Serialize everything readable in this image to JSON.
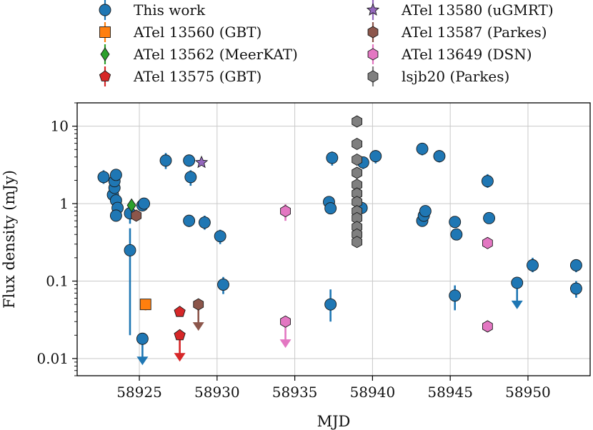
{
  "chart_data": {
    "type": "scatter",
    "xlabel": "MJD",
    "ylabel": "Flux density (mJy)",
    "xlim": [
      58921,
      58954
    ],
    "ylim": [
      0.006,
      20
    ],
    "yscale": "log",
    "grid": true,
    "legend_position": "top",
    "x_ticks": [
      58925,
      58930,
      58935,
      58940,
      58945,
      58950
    ],
    "x_tick_labels": [
      "58925",
      "58930",
      "58935",
      "58940",
      "58945",
      "58950"
    ],
    "y_ticks": [
      0.01,
      0.1,
      1,
      10
    ],
    "y_tick_labels": [
      "0.01",
      "0.1",
      "1",
      "10"
    ],
    "series": [
      {
        "name": "This work",
        "color": "#1f77b4",
        "marker": "circle",
        "points": [
          {
            "x": 58922.7,
            "y": 2.2,
            "lo": 1.8,
            "hi": 2.7
          },
          {
            "x": 58923.3,
            "y": 1.3,
            "lo": 1.1,
            "hi": 1.5
          },
          {
            "x": 58923.4,
            "y": 1.6,
            "lo": 1.4,
            "hi": 1.8
          },
          {
            "x": 58923.4,
            "y": 1.95,
            "lo": 1.7,
            "hi": 2.2
          },
          {
            "x": 58923.5,
            "y": 2.35,
            "lo": 2.0,
            "hi": 2.7
          },
          {
            "x": 58923.5,
            "y": 1.1,
            "lo": 0.95,
            "hi": 1.25
          },
          {
            "x": 58923.6,
            "y": 0.88,
            "lo": 0.75,
            "hi": 1.0
          },
          {
            "x": 58923.5,
            "y": 0.7,
            "lo": 0.6,
            "hi": 0.8
          },
          {
            "x": 58924.4,
            "y": 0.75,
            "lo": 0.55,
            "hi": 0.9
          },
          {
            "x": 58924.4,
            "y": 0.25,
            "lo": 0.02,
            "hi": 0.48
          },
          {
            "x": 58925.2,
            "y": 0.95,
            "lo": 0.8,
            "hi": 1.1
          },
          {
            "x": 58925.3,
            "y": 1.0,
            "lo": 0.85,
            "hi": 1.15
          },
          {
            "x": 58925.2,
            "y": 0.018,
            "upper_limit": true
          },
          {
            "x": 58926.7,
            "y": 3.6,
            "lo": 2.8,
            "hi": 4.5
          },
          {
            "x": 58928.2,
            "y": 3.6,
            "lo": 3.0,
            "hi": 4.3
          },
          {
            "x": 58928.3,
            "y": 2.2,
            "lo": 1.7,
            "hi": 2.7
          },
          {
            "x": 58928.2,
            "y": 0.6,
            "lo": 0.5,
            "hi": 0.7
          },
          {
            "x": 58929.2,
            "y": 0.57,
            "lo": 0.46,
            "hi": 0.7
          },
          {
            "x": 58930.2,
            "y": 0.38,
            "lo": 0.3,
            "hi": 0.46
          },
          {
            "x": 58930.4,
            "y": 0.09,
            "lo": 0.068,
            "hi": 0.113
          },
          {
            "x": 58937.2,
            "y": 1.05,
            "lo": 0.92,
            "hi": 1.2
          },
          {
            "x": 58937.3,
            "y": 0.87,
            "lo": 0.76,
            "hi": 1.0
          },
          {
            "x": 58937.4,
            "y": 3.9,
            "lo": 3.1,
            "hi": 4.7
          },
          {
            "x": 58937.3,
            "y": 0.05,
            "lo": 0.03,
            "hi": 0.078
          },
          {
            "x": 58939.4,
            "y": 3.4,
            "lo": 2.8,
            "hi": 4.0
          },
          {
            "x": 58939.3,
            "y": 0.88,
            "lo": 0.75,
            "hi": 1.0
          },
          {
            "x": 58940.2,
            "y": 4.1,
            "lo": 3.3,
            "hi": 4.9
          },
          {
            "x": 58943.2,
            "y": 5.1,
            "lo": 4.2,
            "hi": 6.1
          },
          {
            "x": 58943.2,
            "y": 0.6,
            "lo": 0.52,
            "hi": 0.68
          },
          {
            "x": 58943.3,
            "y": 0.7,
            "lo": 0.6,
            "hi": 0.8
          },
          {
            "x": 58943.4,
            "y": 0.8,
            "lo": 0.7,
            "hi": 0.9
          },
          {
            "x": 58944.3,
            "y": 4.1,
            "lo": 3.4,
            "hi": 4.9
          },
          {
            "x": 58945.3,
            "y": 0.58,
            "lo": 0.5,
            "hi": 0.66
          },
          {
            "x": 58945.4,
            "y": 0.4,
            "lo": 0.34,
            "hi": 0.46
          },
          {
            "x": 58945.3,
            "y": 0.065,
            "lo": 0.042,
            "hi": 0.088
          },
          {
            "x": 58947.4,
            "y": 1.95,
            "lo": 1.6,
            "hi": 2.4
          },
          {
            "x": 58947.5,
            "y": 0.65,
            "lo": 0.56,
            "hi": 0.74
          },
          {
            "x": 58949.3,
            "y": 0.095,
            "upper_limit": true
          },
          {
            "x": 58950.3,
            "y": 0.16,
            "lo": 0.13,
            "hi": 0.2
          },
          {
            "x": 58953.1,
            "y": 0.16,
            "lo": 0.13,
            "hi": 0.19
          },
          {
            "x": 58953.1,
            "y": 0.08,
            "lo": 0.061,
            "hi": 0.1
          }
        ]
      },
      {
        "name": "ATel 13560 (GBT)",
        "color": "#ff7f0e",
        "marker": "square",
        "points": [
          {
            "x": 58925.4,
            "y": 0.05,
            "lo": 0.042,
            "hi": 0.058
          }
        ]
      },
      {
        "name": "ATel 13562 (MeerKAT)",
        "color": "#2ca02c",
        "marker": "diamond",
        "points": [
          {
            "x": 58924.5,
            "y": 0.95,
            "lo": 0.88,
            "hi": 1.03
          }
        ]
      },
      {
        "name": "ATel 13575 (GBT)",
        "color": "#d62728",
        "marker": "pentagon",
        "points": [
          {
            "x": 58927.6,
            "y": 0.04,
            "lo": 0.035,
            "hi": 0.046
          },
          {
            "x": 58927.6,
            "y": 0.02,
            "upper_limit": true
          }
        ]
      },
      {
        "name": "ATel 13580 (uGMRT)",
        "color": "#9467bd",
        "marker": "star",
        "points": [
          {
            "x": 58929.0,
            "y": 3.4,
            "lo": 3.1,
            "hi": 3.7
          }
        ]
      },
      {
        "name": "ATel 13587 (Parkes)",
        "color": "#8c564b",
        "marker": "hexagon",
        "points": [
          {
            "x": 58924.8,
            "y": 0.7,
            "lo": 0.65,
            "hi": 0.75
          },
          {
            "x": 58928.8,
            "y": 0.05,
            "upper_limit": true
          }
        ]
      },
      {
        "name": "ATel 13649 (DSN)",
        "color": "#e377c2",
        "marker": "hexagon",
        "points": [
          {
            "x": 58934.4,
            "y": 0.8,
            "lo": 0.6,
            "hi": 0.98
          },
          {
            "x": 58934.4,
            "y": 0.03,
            "upper_limit": true
          },
          {
            "x": 58947.4,
            "y": 0.31,
            "lo": 0.26,
            "hi": 0.37
          },
          {
            "x": 58947.4,
            "y": 0.026,
            "lo": 0.022,
            "hi": 0.03
          }
        ]
      },
      {
        "name": "lsjb20 (Parkes)",
        "color": "#7f7f7f",
        "marker": "hexagon",
        "points": [
          {
            "x": 58939.0,
            "y": 11.5
          },
          {
            "x": 58939.0,
            "y": 5.9
          },
          {
            "x": 58939.0,
            "y": 3.7
          },
          {
            "x": 58939.0,
            "y": 2.5
          },
          {
            "x": 58939.0,
            "y": 1.75
          },
          {
            "x": 58939.0,
            "y": 1.35
          },
          {
            "x": 58939.0,
            "y": 1.05
          },
          {
            "x": 58939.0,
            "y": 0.8
          },
          {
            "x": 58939.0,
            "y": 0.65
          },
          {
            "x": 58939.0,
            "y": 0.5
          },
          {
            "x": 58939.0,
            "y": 0.4
          },
          {
            "x": 58939.0,
            "y": 0.32
          }
        ]
      }
    ]
  }
}
